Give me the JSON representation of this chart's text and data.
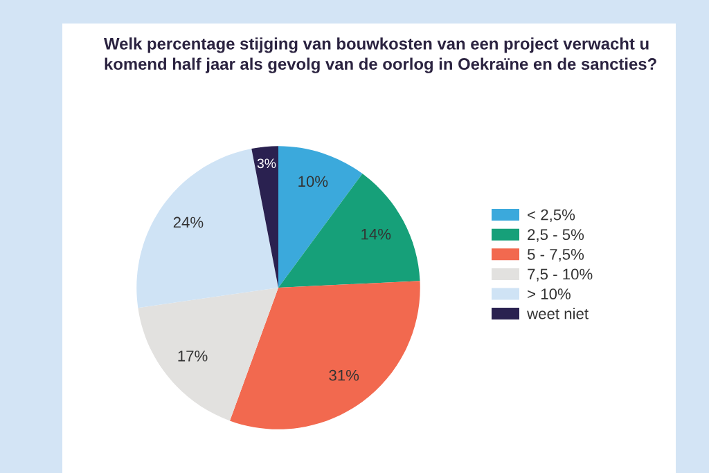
{
  "chart_data": {
    "type": "pie",
    "title": "Welk percentage stijging van bouwkosten van een project verwacht u\nkomend half jaar als gevolg van de oorlog in Oekraïne en de sancties?",
    "categories": [
      "< 2,5%",
      "2,5 - 5%",
      "5 - 7,5%",
      "7,5 - 10%",
      "> 10%",
      "weet niet"
    ],
    "values": [
      10,
      14,
      31,
      17,
      24,
      3
    ],
    "colors": [
      "#3ba9dc",
      "#16a079",
      "#f2694f",
      "#e2e1df",
      "#cfe3f5",
      "#2a2150"
    ],
    "value_labels": [
      "10%",
      "14%",
      "31%",
      "17%",
      "24%",
      "3%"
    ],
    "legend": "right"
  }
}
